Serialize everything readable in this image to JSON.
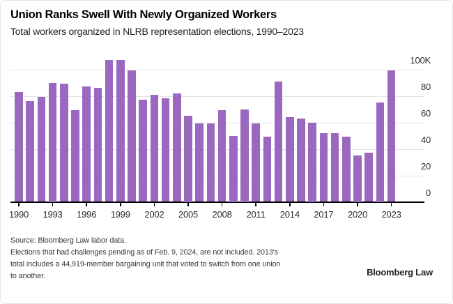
{
  "header": {
    "title": "Union Ranks Swell With Newly Organized Workers",
    "subtitle": "Total workers organized in NLRB representation elections, 1990–2023"
  },
  "chart_data": {
    "type": "bar",
    "title": "Union Ranks Swell With Newly Organized Workers",
    "subtitle": "Total workers organized in NLRB representation elections, 1990–2023",
    "unit": "thousands of workers (K)",
    "categories": [
      1990,
      1991,
      1992,
      1993,
      1994,
      1995,
      1996,
      1997,
      1998,
      1999,
      2000,
      2001,
      2002,
      2003,
      2004,
      2005,
      2006,
      2007,
      2008,
      2009,
      2010,
      2011,
      2012,
      2013,
      2014,
      2015,
      2016,
      2017,
      2018,
      2019,
      2020,
      2021,
      2022,
      2023
    ],
    "values": [
      83,
      76,
      79,
      90,
      89,
      69,
      87,
      86,
      107,
      107,
      99,
      77,
      81,
      78,
      82,
      65,
      59,
      59,
      69,
      50,
      70,
      59,
      49,
      91,
      64,
      63,
      60,
      52,
      52,
      49,
      35,
      37,
      75,
      99
    ],
    "ylim": [
      0,
      110
    ],
    "yticks": [
      0,
      20,
      40,
      60,
      80,
      100
    ],
    "ytick_labels": [
      "0",
      "20",
      "40",
      "60",
      "80",
      "100K"
    ],
    "xtick_years": [
      1990,
      1993,
      1996,
      1999,
      2002,
      2005,
      2008,
      2011,
      2014,
      2017,
      2020,
      2023
    ],
    "grid": true,
    "legend": "none",
    "y_axis_side": "right",
    "bar_color": "#9a68be",
    "grid_color": "#e2e2e2",
    "axis_color": "#000000"
  },
  "footer": {
    "lines": [
      "Source: Bloomberg Law labor data.",
      "Elections that had challenges pending as of Feb. 9, 2024, are not included. 2013's",
      "total includes a 44,919-member bargaining unit that voted to switch from one union",
      "to another."
    ],
    "logo": "Bloomberg Law"
  }
}
